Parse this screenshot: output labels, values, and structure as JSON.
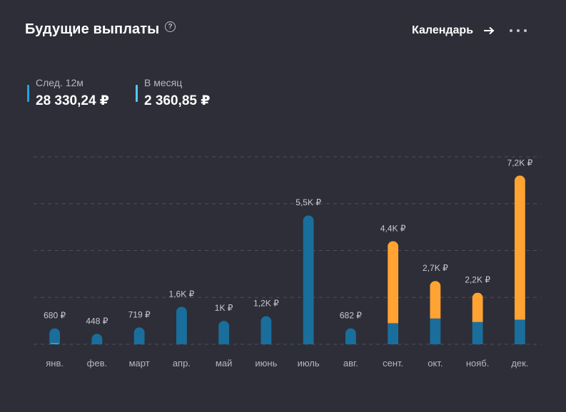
{
  "header": {
    "title": "Будущие выплаты",
    "help_icon": "question-circle-icon",
    "help_glyph": "?",
    "calendar_label": "Календарь",
    "calendar_icon": "arrow-right-icon",
    "more_icon": "more-horizontal-icon"
  },
  "stats": [
    {
      "label": "След. 12м",
      "value": "28 330,24 ₽",
      "color": "#1fa3dd"
    },
    {
      "label": "В месяц",
      "value": "2 360,85 ₽",
      "color": "#56c8f0"
    }
  ],
  "colors": {
    "background": "#2d2e38",
    "received": "#1a6e9c",
    "expected": "#ffa333",
    "accent_light": "#2aa0d8",
    "grid": "#4c4e5b"
  },
  "chart_data": {
    "type": "bar",
    "stacked": true,
    "categories": [
      "янв.",
      "фев.",
      "март",
      "апр.",
      "май",
      "июнь",
      "июль",
      "авг.",
      "сент.",
      "окт.",
      "нояб.",
      "дек."
    ],
    "value_labels": [
      "680 ₽",
      "448 ₽",
      "719 ₽",
      "1,6K ₽",
      "1K ₽",
      "1,2K ₽",
      "5,5K ₽",
      "682 ₽",
      "4,4K ₽",
      "2,7K ₽",
      "2,2K ₽",
      "7,2K ₽"
    ],
    "series": [
      {
        "values": [
          680,
          448,
          719,
          1600,
          1000,
          1200,
          5500,
          682,
          900,
          1100,
          950,
          1050
        ]
      },
      {
        "values": [
          0,
          0,
          0,
          0,
          0,
          0,
          0,
          0,
          3500,
          1600,
          1250,
          6150
        ]
      }
    ],
    "ylim": [
      0,
      8000
    ],
    "grid": true,
    "legend": "none"
  }
}
